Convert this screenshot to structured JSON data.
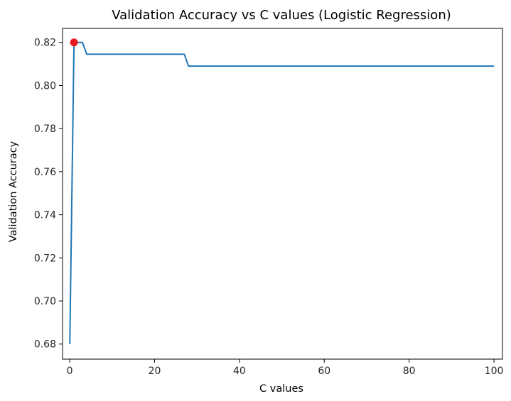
{
  "chart_data": {
    "type": "line",
    "title": "Validation Accuracy vs C values (Logistic Regression)",
    "xlabel": "C values",
    "ylabel": "Validation Accuracy",
    "xlim": [
      -1.7,
      102.0
    ],
    "ylim": [
      0.673,
      0.8265
    ],
    "xticks": [
      0,
      20,
      40,
      60,
      80,
      100
    ],
    "xtick_labels": [
      "0",
      "20",
      "40",
      "60",
      "80",
      "100"
    ],
    "yticks": [
      0.68,
      0.7,
      0.72,
      0.74,
      0.76,
      0.78,
      0.8,
      0.82
    ],
    "ytick_labels": [
      "0.68",
      "0.70",
      "0.72",
      "0.74",
      "0.76",
      "0.78",
      "0.80",
      "0.82"
    ],
    "grid": false,
    "series": [
      {
        "color": "#1f77b4",
        "x": [
          0.01,
          1.0,
          1.1,
          3.0,
          4.0,
          27.0,
          28.0,
          100.0
        ],
        "y": [
          0.68,
          0.82,
          0.82,
          0.82,
          0.8145,
          0.8145,
          0.809,
          0.809
        ]
      }
    ],
    "highlight_point": {
      "x": 1.0,
      "y": 0.82,
      "color": "#e8191c"
    }
  }
}
